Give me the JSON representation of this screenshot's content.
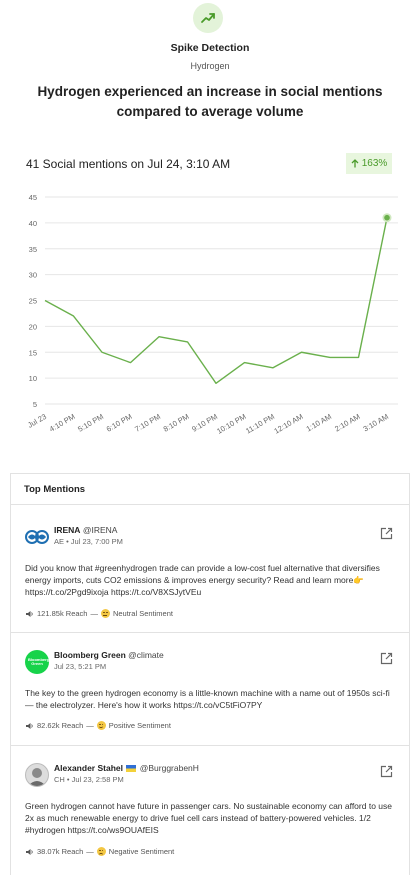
{
  "alert": {
    "icon": "trending-up-icon",
    "type": "Spike Detection",
    "topic": "Hydrogen",
    "headline": "Hydrogen experienced an increase in social mentions compared to average volume"
  },
  "summary": {
    "mentions_text": "41 Social mentions on Jul 24, 3:10 AM",
    "change": "163%",
    "change_icon": "arrow-up-icon"
  },
  "colors": {
    "accent": "#6ab04c",
    "badge_bg": "#e8f6de",
    "grid": "#e6e6e6"
  },
  "chart_data": {
    "type": "line",
    "categories": [
      "Jul 23",
      "4:10 PM",
      "5:10 PM",
      "6:10 PM",
      "7:10 PM",
      "8:10 PM",
      "9:10 PM",
      "10:10 PM",
      "11:10 PM",
      "12:10 AM",
      "1:10 AM",
      "2:10 AM",
      "3:10 AM"
    ],
    "values": [
      25,
      22,
      15,
      13,
      18,
      17,
      9,
      13,
      12,
      15,
      14,
      14,
      41
    ],
    "yticks": [
      5,
      10,
      15,
      20,
      25,
      30,
      35,
      40,
      45
    ],
    "ylim": [
      5,
      45
    ],
    "grid": true,
    "highlight_last_point": true
  },
  "top_mentions": {
    "title": "Top Mentions",
    "items": [
      {
        "avatar": "irena-logo",
        "name": "IRENA",
        "handle": "@IRENA",
        "meta": "AE • Jul 23, 7:00 PM",
        "text": "Did you know that #greenhydrogen trade can provide a low-cost fuel alternative that diversifies energy imports, cuts CO2 emissions & improves energy security? Read and learn more👉https://t.co/2Pgd9ixoja https://t.co/V8XSJytVEu",
        "reach": "121.85k Reach",
        "sentiment": "Neutral Sentiment",
        "sentiment_icon": "neutral-face-icon"
      },
      {
        "avatar": "bloomberg-green-logo",
        "avatar_label": "Bloomberg Green",
        "name": "Bloomberg Green",
        "handle": "@climate",
        "meta": "Jul 23, 5:21 PM",
        "text": "The key to the green hydrogen economy is a little-known machine with a name out of 1950s sci-fi — the electrolyzer. Here's how it works https://t.co/vC5tFiO7PY",
        "reach": "82.62k Reach",
        "sentiment": "Positive Sentiment",
        "sentiment_icon": "smiling-face-icon"
      },
      {
        "avatar": "user-portrait",
        "name": "Alexander Stahel",
        "handle": "@BurggrabenH",
        "meta": "CH • Jul 23, 2:58 PM",
        "text": "Green hydrogen cannot have future in passenger cars. No sustainable economy can afford to use 2x as much renewable energy to drive fuel cell cars instead of battery-powered vehicles. 1/2 #hydrogen https://t.co/ws9OUAfEIS",
        "reach": "38.07k Reach",
        "sentiment": "Negative Sentiment",
        "sentiment_icon": "sad-face-icon"
      }
    ]
  }
}
